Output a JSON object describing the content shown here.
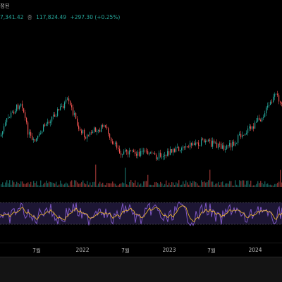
{
  "header": {
    "title_fragment": "정된",
    "ohlc": {
      "open_fragment": "7,341.42",
      "close_label": "종",
      "close_value": "117,824.49",
      "change": "+297.30 (+0.25%)"
    }
  },
  "time_axis": {
    "labels": [
      "7월",
      "2022",
      "7월",
      "2023",
      "7월",
      "2024"
    ]
  },
  "colors": {
    "background": "#000000",
    "up": "#26a69a",
    "down": "#ef5350",
    "rsi_line": "#7e57c2",
    "rsi_ma": "#fbc02d",
    "rsi_band": "#2a1f4a"
  }
}
